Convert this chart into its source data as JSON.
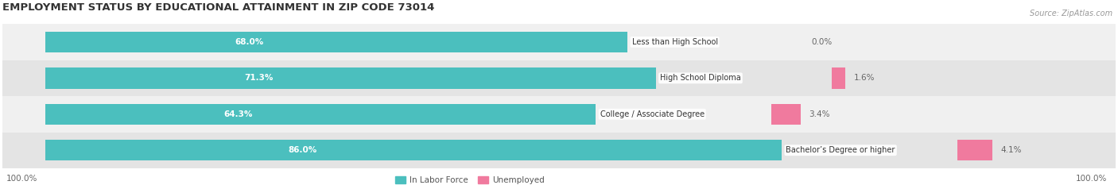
{
  "title": "EMPLOYMENT STATUS BY EDUCATIONAL ATTAINMENT IN ZIP CODE 73014",
  "source": "Source: ZipAtlas.com",
  "categories": [
    "Less than High School",
    "High School Diploma",
    "College / Associate Degree",
    "Bachelor’s Degree or higher"
  ],
  "labor_force": [
    68.0,
    71.3,
    64.3,
    86.0
  ],
  "unemployed": [
    0.0,
    1.6,
    3.4,
    4.1
  ],
  "labor_force_color": "#4BBFBE",
  "unemployed_color": "#F07A9E",
  "row_bg_even": "#F0F0F0",
  "row_bg_odd": "#E4E4E4",
  "title_fontsize": 9.5,
  "label_fontsize": 7.5,
  "tick_fontsize": 7.5,
  "legend_fontsize": 7.5,
  "source_fontsize": 7,
  "total_width": 100.0,
  "left_label": "100.0%",
  "right_label": "100.0%",
  "bar_height": 0.58,
  "figsize": [
    14.06,
    2.33
  ],
  "dpi": 100
}
